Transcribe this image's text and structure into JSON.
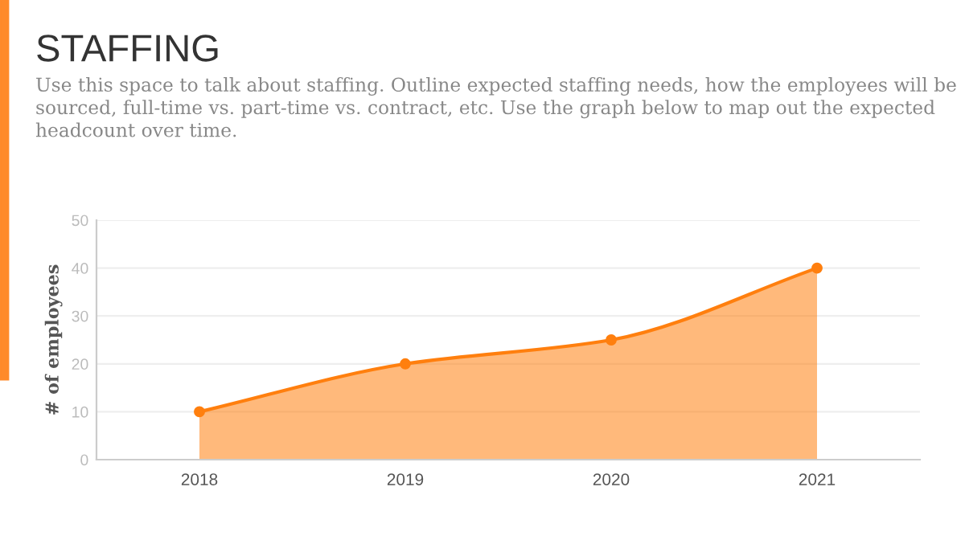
{
  "chart_data": {
    "type": "area",
    "title": "STAFFING",
    "subtitle": "Use this space to talk about staffing. Outline expected staffing needs, how the employees will be sourced, full-time vs. part-time vs. contract, etc. Use the graph below to map out the expected headcount over time.",
    "ylabel": "# of employees",
    "categories": [
      "2018",
      "2019",
      "2020",
      "2021"
    ],
    "values": [
      10,
      20,
      25,
      40
    ],
    "color": "#ff7f0e",
    "ylim": [
      0,
      50
    ],
    "yticks": [
      0,
      10,
      20,
      30,
      40,
      50
    ],
    "grid": "y",
    "marker": "circle",
    "line_style": "solid"
  }
}
